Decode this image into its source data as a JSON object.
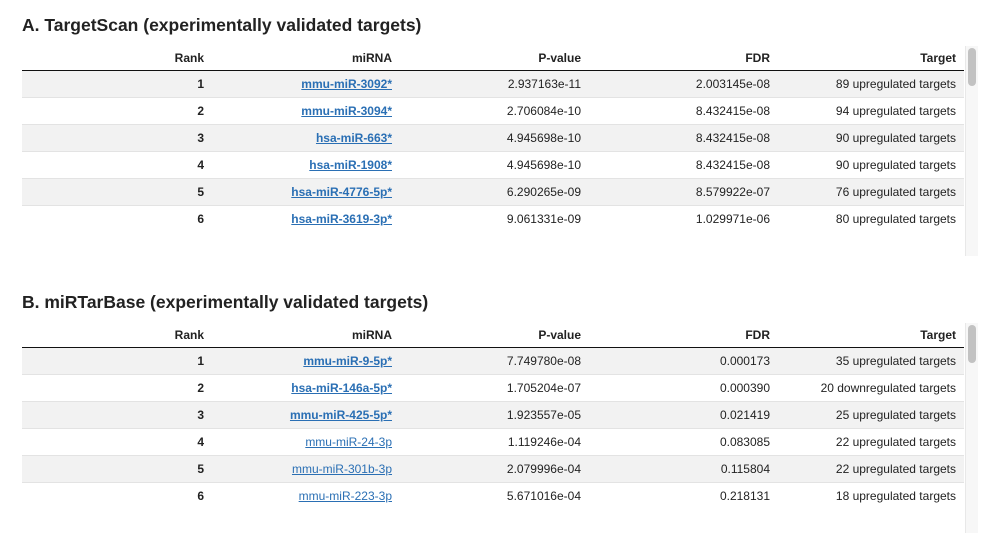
{
  "sectionA": {
    "title": "A. TargetScan (experimentally validated targets)",
    "columns": [
      "Rank",
      "miRNA",
      "P-value",
      "FDR",
      "Target"
    ],
    "rows": [
      {
        "rank": "1",
        "mirna": "mmu-miR-3092*",
        "pvalue": "2.937163e-11",
        "fdr": "2.003145e-08",
        "target": "89 upregulated targets"
      },
      {
        "rank": "2",
        "mirna": "mmu-miR-3094*",
        "pvalue": "2.706084e-10",
        "fdr": "8.432415e-08",
        "target": "94 upregulated targets"
      },
      {
        "rank": "3",
        "mirna": "hsa-miR-663*",
        "pvalue": "4.945698e-10",
        "fdr": "8.432415e-08",
        "target": "90 upregulated targets"
      },
      {
        "rank": "4",
        "mirna": "hsa-miR-1908*",
        "pvalue": "4.945698e-10",
        "fdr": "8.432415e-08",
        "target": "90 upregulated targets"
      },
      {
        "rank": "5",
        "mirna": "hsa-miR-4776-5p*",
        "pvalue": "6.290265e-09",
        "fdr": "8.579922e-07",
        "target": "76 upregulated targets"
      },
      {
        "rank": "6",
        "mirna": "hsa-miR-3619-3p*",
        "pvalue": "9.061331e-09",
        "fdr": "1.029971e-06",
        "target": "80 upregulated targets"
      }
    ]
  },
  "sectionB": {
    "title": "B. miRTarBase (experimentally validated targets)",
    "columns": [
      "Rank",
      "miRNA",
      "P-value",
      "FDR",
      "Target"
    ],
    "rows": [
      {
        "rank": "1",
        "mirna": "mmu-miR-9-5p*",
        "pvalue": "7.749780e-08",
        "fdr": "0.000173",
        "target": "35 upregulated targets"
      },
      {
        "rank": "2",
        "mirna": "hsa-miR-146a-5p*",
        "pvalue": "1.705204e-07",
        "fdr": "0.000390",
        "target": "20 downregulated targets"
      },
      {
        "rank": "3",
        "mirna": "mmu-miR-425-5p*",
        "pvalue": "1.923557e-05",
        "fdr": "0.021419",
        "target": "25 upregulated targets"
      },
      {
        "rank": "4",
        "mirna": "mmu-miR-24-3p",
        "pvalue": "1.119246e-04",
        "fdr": "0.083085",
        "target": "22 upregulated targets"
      },
      {
        "rank": "5",
        "mirna": "mmu-miR-301b-3p",
        "pvalue": "2.079996e-04",
        "fdr": "0.115804",
        "target": "22 upregulated targets"
      },
      {
        "rank": "6",
        "mirna": "mmu-miR-223-3p",
        "pvalue": "5.671016e-04",
        "fdr": "0.218131",
        "target": "18 upregulated targets"
      }
    ]
  },
  "colors": {
    "link": "#2a6fb4",
    "stripe": "#f2f2f2"
  }
}
